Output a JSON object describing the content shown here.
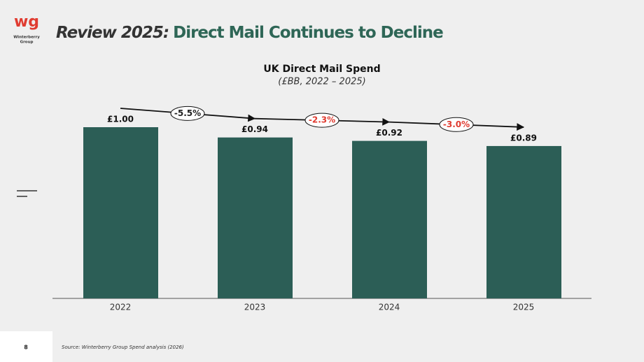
{
  "logo": {
    "mark": "wg",
    "lines": [
      "Winterberry",
      "Group"
    ]
  },
  "header": {
    "title_lead": "Review 2025:",
    "title_main": "Direct Mail Continues to Decline"
  },
  "chart_data": {
    "type": "bar",
    "title": "UK Direct Mail Spend",
    "subtitle": "(£BB, 2022 – 2025)",
    "categories": [
      "2022",
      "2023",
      "2024",
      "2025"
    ],
    "values": [
      1.0,
      0.94,
      0.92,
      0.89
    ],
    "value_labels": [
      "£1.00",
      "£0.94",
      "£0.92",
      "£0.89"
    ],
    "color": "#2c5e56",
    "annotations": [
      {
        "text": "-5.5%",
        "color": "#222222"
      },
      {
        "text": "-2.3%",
        "color": "#e03c31"
      },
      {
        "text": "-3.0%",
        "color": "#e03c31"
      }
    ]
  },
  "footer": {
    "page": "8",
    "source": "Source: Winterberry Group Spend analysis (2026)"
  }
}
